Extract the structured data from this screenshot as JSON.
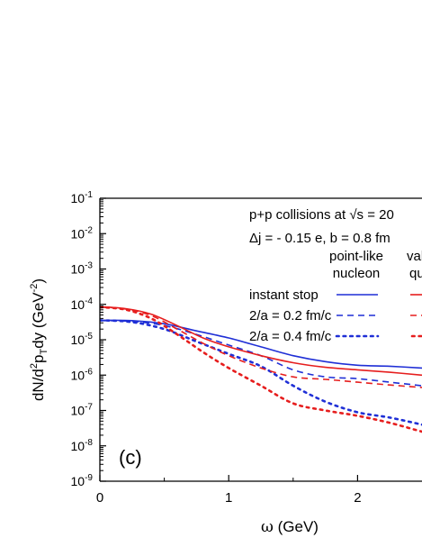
{
  "chart_data": {
    "type": "line",
    "panel_label": "(c)",
    "xlabel_symbol": "ω",
    "xlabel_unit": " (GeV)",
    "ylabel": "dN/d²pTdy (GeV⁻²)",
    "ylabel_parts": {
      "pre": "dN/d",
      "sup1": "2",
      "mid": "p",
      "sub": "T",
      "post": "dy (GeV",
      "sup2": "-2",
      "end": ")"
    },
    "xlim": [
      0,
      2.5
    ],
    "ylim_log10": [
      -9,
      -1
    ],
    "yscale": "log",
    "x_ticks": [
      {
        "value": 0,
        "label": "0"
      },
      {
        "value": 1,
        "label": "1"
      },
      {
        "value": 2,
        "label": "2"
      }
    ],
    "y_ticks": [
      {
        "exp": -1,
        "base": "10",
        "sup": "-1"
      },
      {
        "exp": -2,
        "base": "10",
        "sup": "-2"
      },
      {
        "exp": -3,
        "base": "10",
        "sup": "-3"
      },
      {
        "exp": -4,
        "base": "10",
        "sup": "-4"
      },
      {
        "exp": -5,
        "base": "10",
        "sup": "-5"
      },
      {
        "exp": -6,
        "base": "10",
        "sup": "-6"
      },
      {
        "exp": -7,
        "base": "10",
        "sup": "-7"
      },
      {
        "exp": -8,
        "base": "10",
        "sup": "-8"
      },
      {
        "exp": -9,
        "base": "10",
        "sup": "-9"
      }
    ],
    "annotation_line1": "p+p collisions at √s = 20",
    "annotation_line2": "Δj = - 0.15 e, b = 0.8 fm",
    "legend_header_col1_line1": "point-like",
    "legend_header_col1_line2": "nucleon",
    "legend_header_col2_line1": "val",
    "legend_header_col2_line2": "qu",
    "legend_entries": [
      "instant stop",
      "2/a = 0.2 fm/c",
      "2/a = 0.4 fm/c"
    ],
    "colors": {
      "point_like": "#1f2fd6",
      "valence": "#e61e1e"
    },
    "series": [
      {
        "group": "point-like",
        "style": "solid",
        "color": "#1f2fd6",
        "points": [
          [
            0,
            -4.45
          ],
          [
            0.25,
            -4.46
          ],
          [
            0.5,
            -4.55
          ],
          [
            0.75,
            -4.75
          ],
          [
            1.0,
            -4.95
          ],
          [
            1.25,
            -5.2
          ],
          [
            1.5,
            -5.45
          ],
          [
            1.75,
            -5.62
          ],
          [
            2.0,
            -5.72
          ],
          [
            2.25,
            -5.75
          ],
          [
            2.5,
            -5.8
          ]
        ]
      },
      {
        "group": "point-like",
        "style": "dashed",
        "color": "#1f2fd6",
        "points": [
          [
            0,
            -4.46
          ],
          [
            0.25,
            -4.48
          ],
          [
            0.5,
            -4.6
          ],
          [
            0.75,
            -4.85
          ],
          [
            1.0,
            -5.15
          ],
          [
            1.25,
            -5.45
          ],
          [
            1.5,
            -5.85
          ],
          [
            1.75,
            -6.05
          ],
          [
            2.0,
            -6.1
          ],
          [
            2.25,
            -6.2
          ],
          [
            2.5,
            -6.3
          ]
        ]
      },
      {
        "group": "point-like",
        "style": "dotted",
        "color": "#1f2fd6",
        "points": [
          [
            0,
            -4.45
          ],
          [
            0.25,
            -4.5
          ],
          [
            0.5,
            -4.7
          ],
          [
            0.75,
            -5.05
          ],
          [
            1.0,
            -5.4
          ],
          [
            1.25,
            -5.75
          ],
          [
            1.5,
            -6.3
          ],
          [
            1.75,
            -6.75
          ],
          [
            2.0,
            -7.05
          ],
          [
            2.25,
            -7.2
          ],
          [
            2.5,
            -7.4
          ]
        ]
      },
      {
        "group": "valence",
        "style": "solid",
        "color": "#e61e1e",
        "points": [
          [
            0,
            -4.07
          ],
          [
            0.2,
            -4.12
          ],
          [
            0.4,
            -4.28
          ],
          [
            0.6,
            -4.6
          ],
          [
            0.8,
            -4.95
          ],
          [
            1.0,
            -5.2
          ],
          [
            1.25,
            -5.45
          ],
          [
            1.5,
            -5.65
          ],
          [
            1.75,
            -5.78
          ],
          [
            2.0,
            -5.85
          ],
          [
            2.25,
            -5.92
          ],
          [
            2.5,
            -6.0
          ]
        ]
      },
      {
        "group": "valence",
        "style": "dashed",
        "color": "#e61e1e",
        "points": [
          [
            0,
            -4.08
          ],
          [
            0.2,
            -4.13
          ],
          [
            0.4,
            -4.32
          ],
          [
            0.6,
            -4.7
          ],
          [
            0.8,
            -5.1
          ],
          [
            1.0,
            -5.45
          ],
          [
            1.25,
            -5.8
          ],
          [
            1.5,
            -6.05
          ],
          [
            1.75,
            -6.12
          ],
          [
            2.0,
            -6.2
          ],
          [
            2.25,
            -6.28
          ],
          [
            2.5,
            -6.35
          ]
        ]
      },
      {
        "group": "valence",
        "style": "dotted",
        "color": "#e61e1e",
        "points": [
          [
            0,
            -4.08
          ],
          [
            0.2,
            -4.15
          ],
          [
            0.4,
            -4.4
          ],
          [
            0.6,
            -4.85
          ],
          [
            0.8,
            -5.35
          ],
          [
            1.0,
            -5.8
          ],
          [
            1.25,
            -6.3
          ],
          [
            1.5,
            -6.8
          ],
          [
            1.75,
            -7.0
          ],
          [
            2.0,
            -7.15
          ],
          [
            2.25,
            -7.35
          ],
          [
            2.5,
            -7.6
          ]
        ]
      }
    ]
  }
}
